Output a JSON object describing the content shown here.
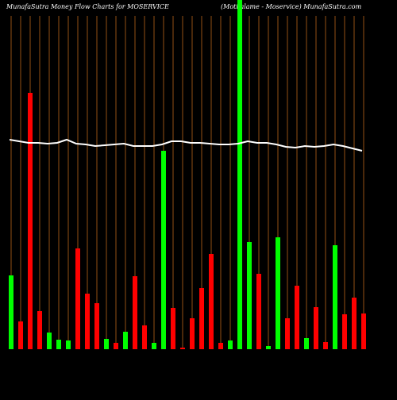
{
  "chart_data": {
    "type": "bar",
    "title": "MunafaSutra  Money Flow  Charts for MOSERVICE",
    "subtitle": "(Motilalame -   Moservice) MunafaSutra.com",
    "categories": [
      null,
      null,
      null,
      null,
      null,
      null,
      null,
      null,
      null,
      null,
      null,
      null,
      null,
      null,
      null,
      null,
      null,
      null,
      null,
      null,
      null,
      null,
      null,
      null,
      null,
      null,
      null,
      null,
      null,
      null,
      null,
      null,
      null,
      null,
      null,
      null,
      null,
      null
    ],
    "values": [
      93,
      35,
      323,
      48,
      21,
      12,
      11,
      127,
      70,
      58,
      13,
      8,
      22,
      92,
      30,
      8,
      250,
      52,
      2,
      39,
      77,
      120,
      8,
      11,
      440,
      135,
      95,
      4,
      141,
      39,
      80,
      14,
      53,
      9,
      131,
      44,
      65,
      45
    ],
    "colors": [
      "#00ff00",
      "#ff0000",
      "#ff0000",
      "#ff0000",
      "#00ff00",
      "#00ff00",
      "#00ff00",
      "#ff0000",
      "#ff0000",
      "#ff0000",
      "#00ff00",
      "#ff0000",
      "#00ff00",
      "#ff0000",
      "#ff0000",
      "#00ff00",
      "#00ff00",
      "#ff0000",
      "#ff0000",
      "#ff0000",
      "#ff0000",
      "#ff0000",
      "#ff0000",
      "#00ff00",
      "#00ff00",
      "#00ff00",
      "#ff0000",
      "#00ff00",
      "#00ff00",
      "#ff0000",
      "#ff0000",
      "#00ff00",
      "#ff0000",
      "#ff0000",
      "#00ff00",
      "#ff0000",
      "#ff0000",
      "#ff0000"
    ],
    "line": {
      "color": "#ffffff",
      "values": [
        264,
        262,
        260,
        260,
        259,
        260,
        264,
        259,
        258,
        256,
        257,
        258,
        259,
        256,
        256,
        256,
        258,
        262,
        262,
        260,
        260,
        259,
        258,
        258,
        259,
        262,
        260,
        260,
        258,
        255,
        254,
        256,
        255,
        256,
        258,
        256,
        253,
        250
      ]
    },
    "grid_color": "#b8651b",
    "ylim": [
      0,
      440
    ]
  }
}
